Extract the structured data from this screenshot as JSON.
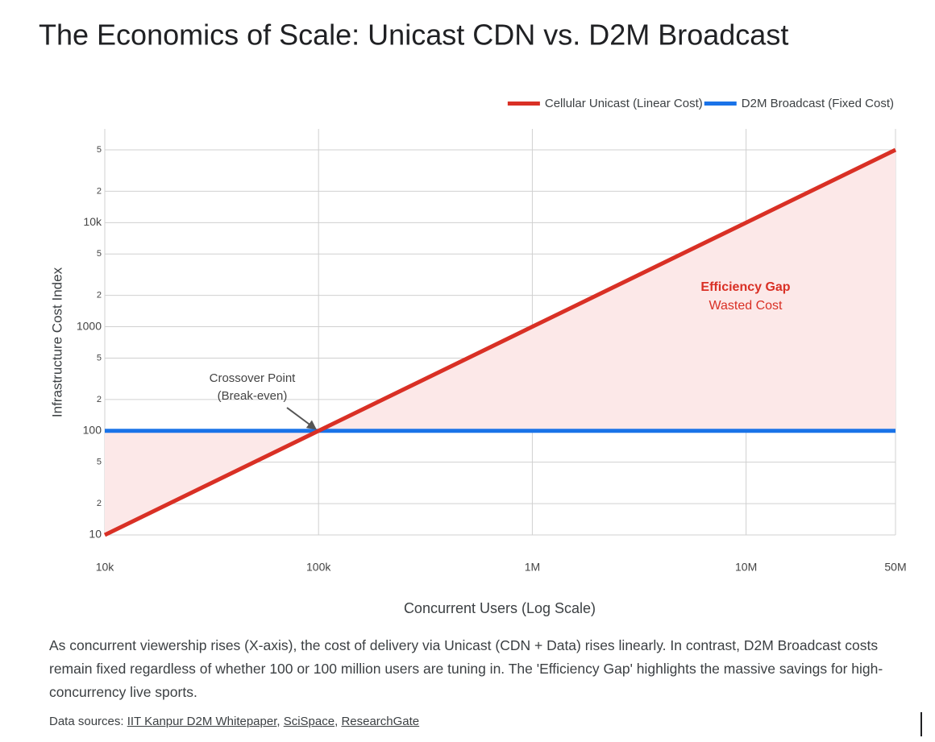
{
  "chart_data": {
    "type": "line",
    "title": "The Economics of Scale: Unicast CDN vs. D2M Broadcast",
    "x_label": "Concurrent Users (Log Scale)",
    "y_label": "Infrastructure Cost Index",
    "x": [
      10000,
      100000,
      1000000,
      10000000,
      50000000
    ],
    "series": [
      {
        "name": "Cellular Unicast (Linear Cost)",
        "color": "#d93025",
        "values": [
          10,
          100,
          1000,
          10000,
          50000
        ]
      },
      {
        "name": "D2M Broadcast (Fixed Cost)",
        "color": "#1a73e8",
        "values": [
          100,
          100,
          100,
          100,
          100
        ]
      }
    ],
    "fill_color": "#fce8e8",
    "x_log": true,
    "y_log": true,
    "xlim": [
      10000,
      50000000
    ],
    "ylim": [
      10,
      50000
    ],
    "xticks": [
      {
        "value": 10000,
        "label": "10k"
      },
      {
        "value": 100000,
        "label": "100k"
      },
      {
        "value": 1000000,
        "label": "1M"
      },
      {
        "value": 10000000,
        "label": "10M"
      },
      {
        "value": 50000000,
        "label": "50M"
      }
    ],
    "yticks": [
      10,
      {
        "value": 20,
        "label": "2"
      },
      {
        "value": 50,
        "label": "5"
      },
      100,
      {
        "value": 200,
        "label": "2"
      },
      {
        "value": 500,
        "label": "5"
      },
      1000,
      {
        "value": 2000,
        "label": "2"
      },
      {
        "value": 5000,
        "label": "5"
      },
      {
        "value": 10000,
        "label": "10k"
      },
      {
        "value": 20000,
        "label": "2"
      },
      {
        "value": 50000,
        "label": "5"
      }
    ],
    "grid": true,
    "legend": "top-right",
    "annotations": [
      "Crossover Point",
      "(Break-even)",
      "Efficiency Gap",
      "Wasted Cost"
    ]
  },
  "description": "As concurrent viewership rises (X-axis), the cost of delivery via Unicast (CDN + Data) rises linearly. In contrast, D2M Broadcast costs remain fixed regardless of whether 100 or 100 million users are tuning in. The 'Efficiency Gap' highlights the massive savings for high-concurrency live sports.",
  "sources": {
    "label": "Data sources:",
    "links": [
      "IIT Kanpur D2M Whitepaper",
      "SciSpace",
      "ResearchGate"
    ]
  }
}
